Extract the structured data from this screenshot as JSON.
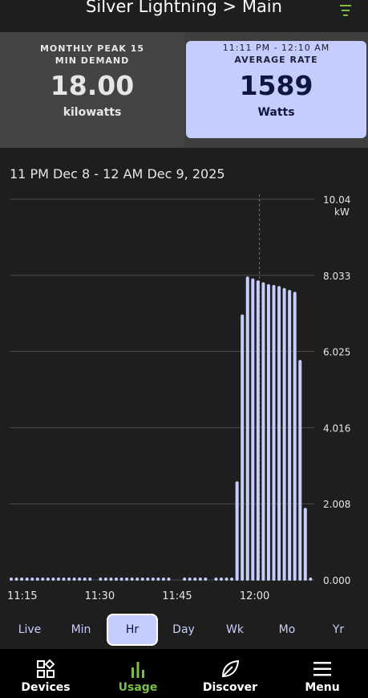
{
  "header": {
    "title": "Silver Lightning > Main"
  },
  "cards": {
    "left": {
      "caption_line1": "MONTHLY PEAK 15",
      "caption_line2": "MIN DEMAND",
      "value": "18.00",
      "unit": "kilowatts"
    },
    "right": {
      "caption_line1": "11:11 PM - 12:10 AM",
      "caption_line2": "AVERAGE RATE",
      "value": "1589",
      "unit": "Watts"
    }
  },
  "range_label": "11 PM Dec 8 - 12 AM Dec 9, 2025",
  "chart_data": {
    "type": "bar",
    "y_unit": "kW",
    "ylim": [
      0,
      10.04
    ],
    "y_ticks": [
      "10.04",
      "8.033",
      "6.025",
      "4.016",
      "2.008",
      "0.000"
    ],
    "y_tick_values": [
      10.04,
      8.033,
      6.025,
      4.016,
      2.008,
      0.0
    ],
    "x_ticks": [
      "11:15",
      "11:30",
      "11:45",
      "12:00"
    ],
    "x_tick_minutes": [
      15,
      30,
      45,
      60
    ],
    "x_minute_range": [
      11,
      70
    ],
    "values": [
      0.03,
      0.03,
      0.03,
      0.03,
      0.03,
      0.03,
      0.03,
      0.03,
      0.03,
      0.03,
      0.03,
      0.03,
      0.03,
      0.03,
      0.03,
      0.03,
      0,
      0.03,
      0.03,
      0.03,
      0.03,
      0.03,
      0.03,
      0.03,
      0.03,
      0.03,
      0.03,
      0.03,
      0.03,
      0.03,
      0.03,
      0,
      0,
      0.03,
      0.03,
      0.03,
      0.03,
      0.03,
      0,
      0.03,
      0.03,
      0.03,
      0.03,
      2.6,
      7.0,
      8.0,
      7.95,
      7.9,
      7.85,
      7.8,
      7.78,
      7.75,
      7.7,
      7.65,
      7.6,
      5.8,
      1.9,
      0.03
    ],
    "cursor_minute": 60,
    "bar_color": "#c5cdfc",
    "grid": true
  },
  "periods": [
    "Live",
    "Min",
    "Hr",
    "Day",
    "Wk",
    "Mo",
    "Yr"
  ],
  "active_period": "Hr",
  "nav": [
    {
      "label": "Devices",
      "icon": "devices-icon"
    },
    {
      "label": "Usage",
      "icon": "usage-bars-icon"
    },
    {
      "label": "Discover",
      "icon": "leaf-icon"
    },
    {
      "label": "Menu",
      "icon": "hamburger-menu-icon"
    }
  ],
  "colors": {
    "accent": "#c5cdfc",
    "nav_active": "#7bbf45",
    "background": "#1e1e1e"
  }
}
